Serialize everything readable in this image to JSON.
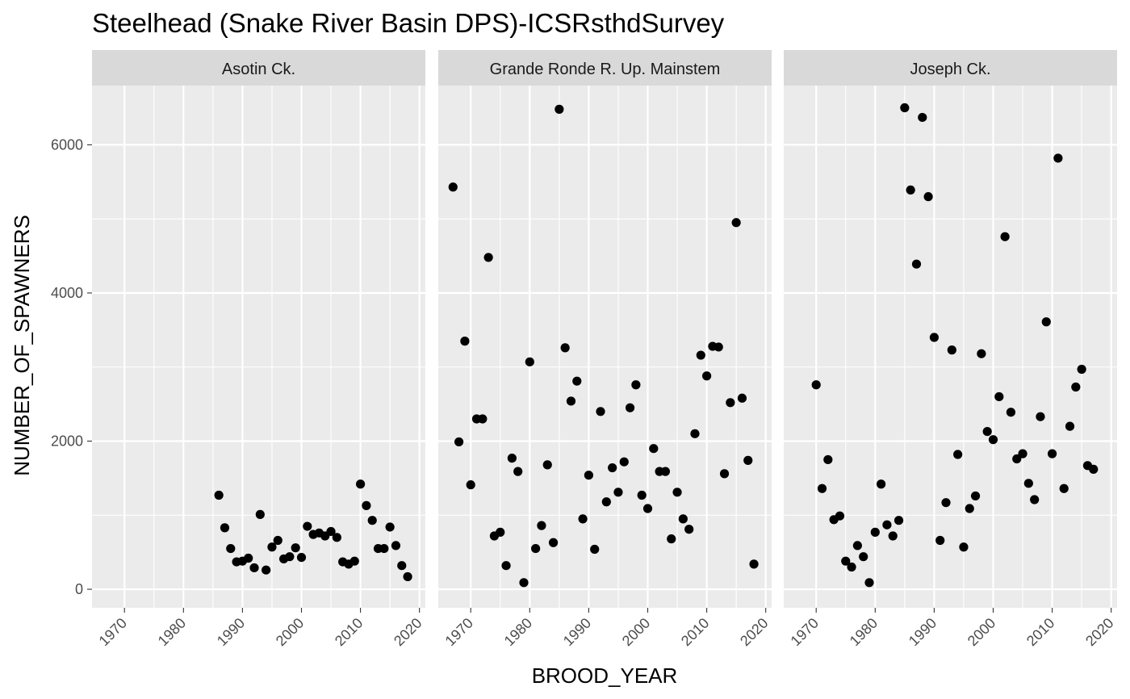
{
  "chart_data": {
    "type": "scatter",
    "title": "Steelhead (Snake River Basin DPS)-ICSRsthdSurvey",
    "xlabel": "BROOD_YEAR",
    "ylabel": "NUMBER_OF_SPAWNERS",
    "xlim": [
      1964.5,
      2021
    ],
    "ylim": [
      -250,
      6800
    ],
    "x_ticks": [
      1970,
      1980,
      1990,
      2000,
      2010,
      2020
    ],
    "y_ticks": [
      0,
      2000,
      4000,
      6000
    ],
    "grid": true,
    "legend": "none",
    "facets": [
      {
        "name": "Asotin Ck.",
        "points": [
          [
            1986,
            1270
          ],
          [
            1987,
            830
          ],
          [
            1988,
            550
          ],
          [
            1989,
            370
          ],
          [
            1990,
            380
          ],
          [
            1991,
            420
          ],
          [
            1992,
            290
          ],
          [
            1993,
            1010
          ],
          [
            1994,
            260
          ],
          [
            1995,
            570
          ],
          [
            1996,
            660
          ],
          [
            1997,
            410
          ],
          [
            1998,
            440
          ],
          [
            1999,
            560
          ],
          [
            2000,
            430
          ],
          [
            2001,
            850
          ],
          [
            2002,
            740
          ],
          [
            2003,
            760
          ],
          [
            2004,
            720
          ],
          [
            2005,
            780
          ],
          [
            2006,
            700
          ],
          [
            2007,
            370
          ],
          [
            2008,
            340
          ],
          [
            2009,
            380
          ],
          [
            2010,
            1420
          ],
          [
            2011,
            1130
          ],
          [
            2012,
            930
          ],
          [
            2013,
            550
          ],
          [
            2014,
            550
          ],
          [
            2015,
            840
          ],
          [
            2016,
            590
          ],
          [
            2017,
            320
          ],
          [
            2018,
            170
          ]
        ]
      },
      {
        "name": "Grande Ronde R. Up. Mainstem",
        "points": [
          [
            1967,
            5430
          ],
          [
            1968,
            1990
          ],
          [
            1969,
            3350
          ],
          [
            1970,
            1410
          ],
          [
            1971,
            2300
          ],
          [
            1972,
            2300
          ],
          [
            1973,
            4480
          ],
          [
            1974,
            720
          ],
          [
            1975,
            770
          ],
          [
            1976,
            320
          ],
          [
            1977,
            1770
          ],
          [
            1978,
            1590
          ],
          [
            1979,
            90
          ],
          [
            1980,
            3070
          ],
          [
            1981,
            550
          ],
          [
            1982,
            860
          ],
          [
            1983,
            1680
          ],
          [
            1984,
            630
          ],
          [
            1985,
            6480
          ],
          [
            1986,
            3260
          ],
          [
            1987,
            2540
          ],
          [
            1988,
            2810
          ],
          [
            1989,
            950
          ],
          [
            1990,
            1540
          ],
          [
            1991,
            540
          ],
          [
            1992,
            2400
          ],
          [
            1993,
            1180
          ],
          [
            1994,
            1640
          ],
          [
            1995,
            1310
          ],
          [
            1996,
            1720
          ],
          [
            1997,
            2450
          ],
          [
            1998,
            2760
          ],
          [
            1999,
            1270
          ],
          [
            2000,
            1090
          ],
          [
            2001,
            1900
          ],
          [
            2002,
            1590
          ],
          [
            2003,
            1590
          ],
          [
            2004,
            680
          ],
          [
            2005,
            1310
          ],
          [
            2006,
            950
          ],
          [
            2007,
            810
          ],
          [
            2008,
            2100
          ],
          [
            2009,
            3160
          ],
          [
            2010,
            2880
          ],
          [
            2011,
            3280
          ],
          [
            2012,
            3270
          ],
          [
            2013,
            1560
          ],
          [
            2014,
            2520
          ],
          [
            2015,
            4950
          ],
          [
            2016,
            2580
          ],
          [
            2017,
            1740
          ],
          [
            2018,
            340
          ]
        ]
      },
      {
        "name": "Joseph Ck.",
        "points": [
          [
            1970,
            2760
          ],
          [
            1971,
            1360
          ],
          [
            1972,
            1750
          ],
          [
            1973,
            940
          ],
          [
            1974,
            990
          ],
          [
            1975,
            380
          ],
          [
            1976,
            300
          ],
          [
            1977,
            590
          ],
          [
            1978,
            440
          ],
          [
            1979,
            90
          ],
          [
            1980,
            770
          ],
          [
            1981,
            1420
          ],
          [
            1982,
            870
          ],
          [
            1983,
            720
          ],
          [
            1984,
            930
          ],
          [
            1985,
            6500
          ],
          [
            1986,
            5390
          ],
          [
            1987,
            4390
          ],
          [
            1988,
            6370
          ],
          [
            1989,
            5300
          ],
          [
            1990,
            3400
          ],
          [
            1991,
            660
          ],
          [
            1992,
            1170
          ],
          [
            1993,
            3230
          ],
          [
            1994,
            1820
          ],
          [
            1995,
            570
          ],
          [
            1996,
            1090
          ],
          [
            1997,
            1260
          ],
          [
            1998,
            3180
          ],
          [
            1999,
            2130
          ],
          [
            2000,
            2020
          ],
          [
            2001,
            2600
          ],
          [
            2002,
            4760
          ],
          [
            2003,
            2390
          ],
          [
            2004,
            1760
          ],
          [
            2005,
            1830
          ],
          [
            2006,
            1430
          ],
          [
            2007,
            1210
          ],
          [
            2008,
            2330
          ],
          [
            2009,
            3610
          ],
          [
            2010,
            1830
          ],
          [
            2011,
            5820
          ],
          [
            2012,
            1360
          ],
          [
            2013,
            2200
          ],
          [
            2014,
            2730
          ],
          [
            2015,
            2970
          ],
          [
            2016,
            1670
          ],
          [
            2017,
            1620
          ]
        ]
      }
    ]
  }
}
